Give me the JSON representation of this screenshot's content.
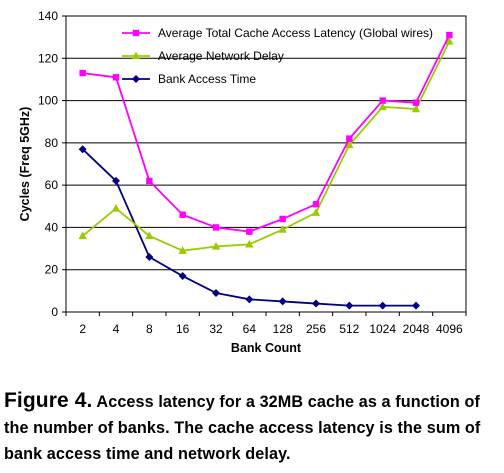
{
  "chart_data": {
    "type": "line",
    "categories": [
      "2",
      "4",
      "8",
      "16",
      "32",
      "64",
      "128",
      "256",
      "512",
      "1024",
      "2048",
      "4096"
    ],
    "xlabel": "Bank Count",
    "ylabel": "Cycles (Freq 5GHz)",
    "ylim": [
      0,
      140
    ],
    "yticks": [
      "0",
      "20",
      "40",
      "60",
      "80",
      "100",
      "120",
      "140"
    ],
    "grid": "horizontal",
    "legend_position": "top-right",
    "series": [
      {
        "name": "Average Total Cache Access Latency (Global wires)",
        "color": "#ff00ff",
        "marker": "square",
        "values": [
          113,
          111,
          62,
          46,
          40,
          38,
          44,
          51,
          82,
          100,
          99,
          131
        ]
      },
      {
        "name": "Average Network Delay",
        "color": "#99cc00",
        "marker": "triangle",
        "values": [
          36,
          49,
          36,
          29,
          31,
          32,
          39,
          47,
          79,
          97,
          96,
          128
        ]
      },
      {
        "name": "Bank Access Time",
        "color": "#000080",
        "marker": "diamond",
        "values": [
          77,
          62,
          26,
          17,
          9,
          6,
          5,
          4,
          3,
          3,
          3,
          null
        ]
      }
    ]
  },
  "caption": {
    "label": "Figure 4.",
    "text": "Access latency for a 32MB cache as a function of the number of banks. The cache access latency is the sum of bank access time and network delay."
  }
}
